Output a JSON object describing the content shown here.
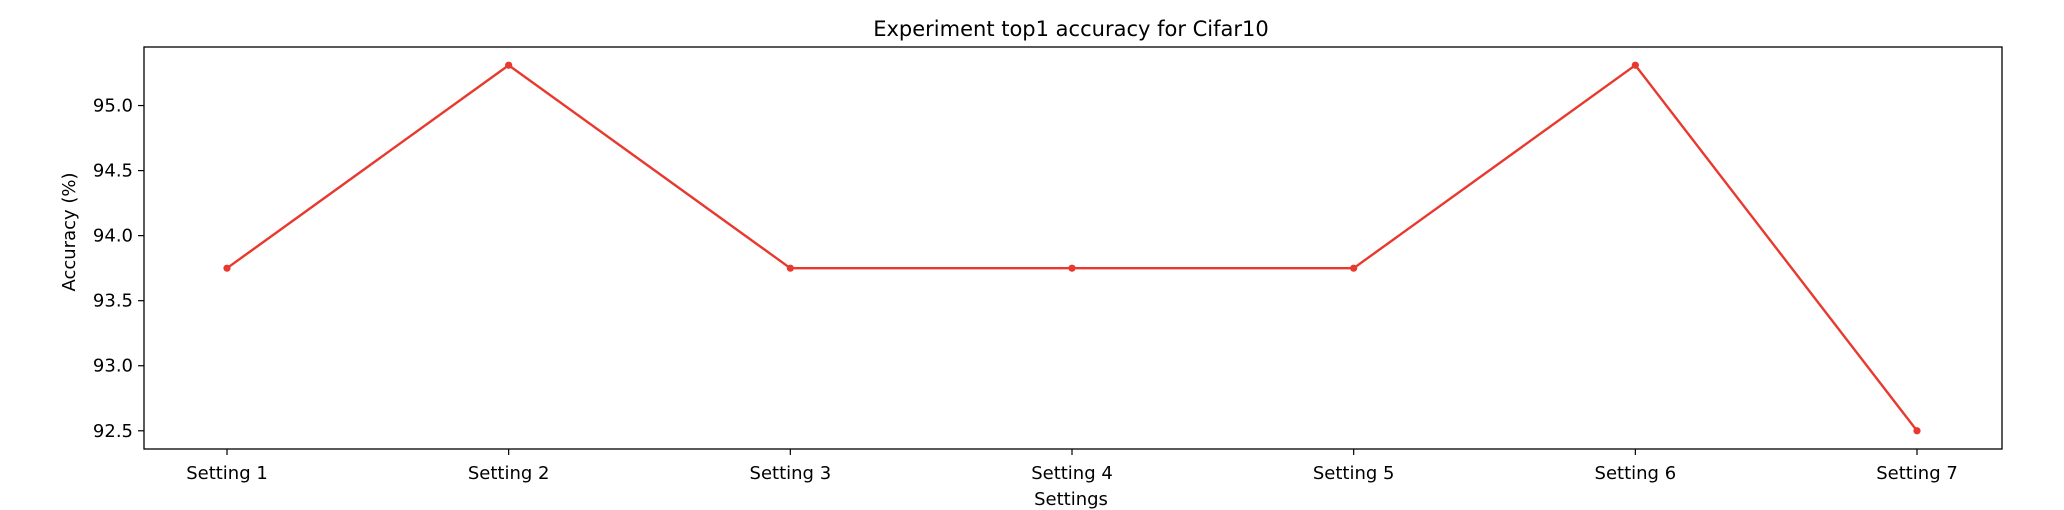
{
  "chart_data": {
    "type": "line",
    "title": "Experiment top1 accuracy for Cifar10",
    "xlabel": "Settings",
    "ylabel": "Accuracy (%)",
    "categories": [
      "Setting 1",
      "Setting 2",
      "Setting 3",
      "Setting 4",
      "Setting 5",
      "Setting 6",
      "Setting 7"
    ],
    "series": [
      {
        "values": [
          93.75,
          95.31,
          93.75,
          93.75,
          93.75,
          95.31,
          92.5
        ],
        "color": "#e8392e",
        "marker": "point"
      }
    ],
    "yticks": [
      "92.5",
      "93.0",
      "93.5",
      "94.0",
      "94.5",
      "95.0"
    ],
    "ylim": [
      92.36,
      95.45
    ],
    "grid": false,
    "legend": "none"
  }
}
